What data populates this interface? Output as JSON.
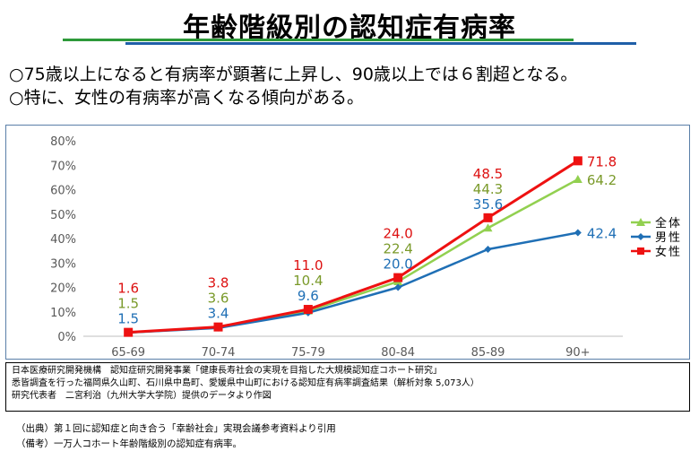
{
  "page": {
    "title": "年齢階級別の認知症有病率",
    "bullets": [
      "○75歳以上になると有病率が顕著に上昇し、90歳以上では６割超となる。",
      "○特に、女性の有病率が高くなる傾向がある。"
    ],
    "source_lines": [
      "日本医療研究開発機構　認知症研究開発事業「健康長寿社会の実現を目指した大規模認知症コホート研究」",
      "悉皆調査を行った福岡県久山町、石川県中島町、愛媛県中山町における認知症有病率調査結果（解析対象 5,073人）",
      "研究代表者　二宮利治（九州大学大学院）提供のデータより作図"
    ],
    "notes": [
      "（出典）第１回に認知症と向き合う「幸齢社会」実現会議参考資料より引用",
      "（備考）一万人コホート年齢階級別の認知症有病率。"
    ]
  },
  "chart_data": {
    "type": "line",
    "categories": [
      "65-69",
      "70-74",
      "75-79",
      "80-84",
      "85-89",
      "90+"
    ],
    "y_ticks": [
      "0%",
      "10%",
      "20%",
      "30%",
      "40%",
      "50%",
      "60%",
      "70%",
      "80%"
    ],
    "ylim": [
      0,
      80
    ],
    "grid": false,
    "legend_position": "right",
    "series": [
      {
        "name": "全体",
        "values": [
          1.5,
          3.6,
          10.4,
          22.4,
          44.3,
          64.2
        ],
        "labels": [
          "1.5",
          "3.6",
          "10.4",
          "22.4",
          "44.3",
          "64.2"
        ],
        "color": "#92d050",
        "label_color": "#7a9a2a",
        "marker": "triangle"
      },
      {
        "name": "男性",
        "values": [
          1.5,
          3.4,
          9.6,
          20.0,
          35.6,
          42.4
        ],
        "labels": [
          "1.5",
          "3.4",
          "9.6",
          "20.0",
          "35.6",
          "42.4"
        ],
        "color": "#1f6fb5",
        "label_color": "#1f6fb5",
        "marker": "diamond"
      },
      {
        "name": "女性",
        "values": [
          1.6,
          3.8,
          11.0,
          24.0,
          48.5,
          71.8
        ],
        "labels": [
          "1.6",
          "3.8",
          "11.0",
          "24.0",
          "48.5",
          "71.8"
        ],
        "color": "#ee1111",
        "label_color": "#dd1111",
        "marker": "square"
      }
    ]
  }
}
